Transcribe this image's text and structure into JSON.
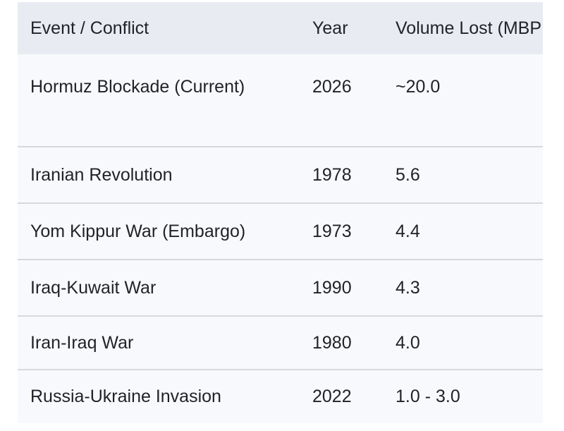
{
  "page": {
    "background": "#ffffff"
  },
  "table": {
    "colors": {
      "header_bg": "#e8ecf2",
      "row_bg": "#f8f9fc",
      "divider": "#d6d8dd",
      "text": "#1f2227"
    },
    "columns": [
      {
        "label": "Event / Conflict"
      },
      {
        "label": "Year"
      },
      {
        "label": "Volume Lost (MBP"
      }
    ],
    "rows": [
      {
        "event": "Hormuz Blockade (Current)",
        "year": "2026",
        "volume": "~20.0"
      },
      {
        "event": "Iranian Revolution",
        "year": "1978",
        "volume": "5.6"
      },
      {
        "event": "Yom Kippur War (Embargo)",
        "year": "1973",
        "volume": "4.4"
      },
      {
        "event": "Iraq-Kuwait War",
        "year": "1990",
        "volume": "4.3"
      },
      {
        "event": "Iran-Iraq War",
        "year": "1980",
        "volume": "4.0"
      },
      {
        "event": "Russia-Ukraine Invasion",
        "year": "2022",
        "volume": "1.0 - 3.0"
      }
    ]
  }
}
